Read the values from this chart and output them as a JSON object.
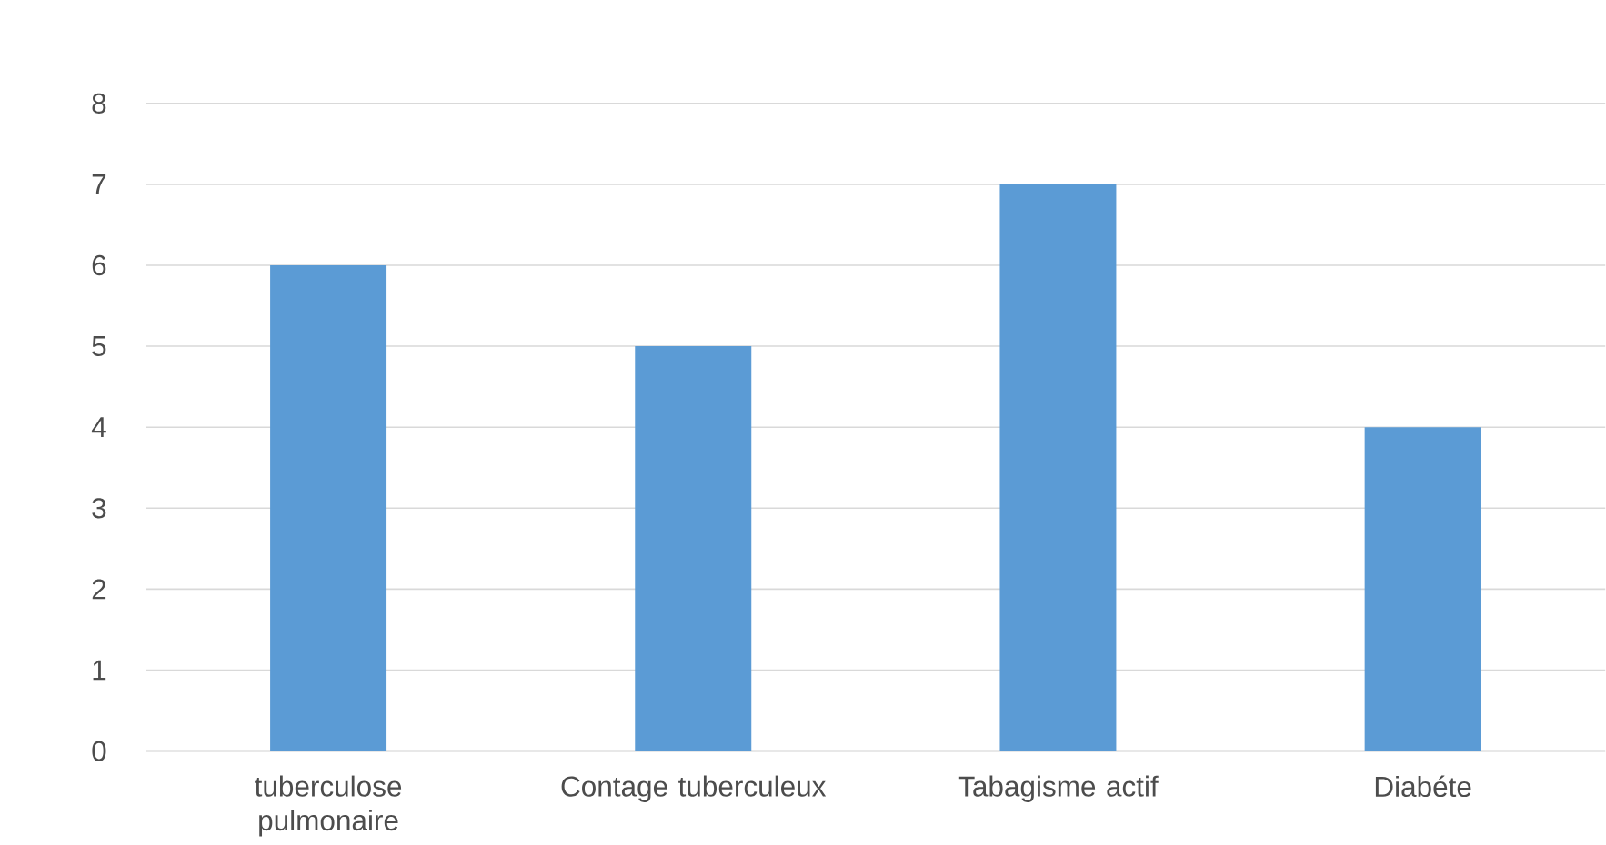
{
  "chart_data": {
    "type": "bar",
    "categories": [
      "tuberculose pulmonaire",
      "Contage tuberculeux",
      "Tabagisme actif",
      "Diabéte"
    ],
    "values": [
      6,
      5,
      7,
      4
    ],
    "color": "#5b9bd5",
    "ylim": [
      0,
      8
    ],
    "yticks": [
      0,
      1,
      2,
      3,
      4,
      5,
      6,
      7,
      8
    ],
    "grid": "y"
  }
}
